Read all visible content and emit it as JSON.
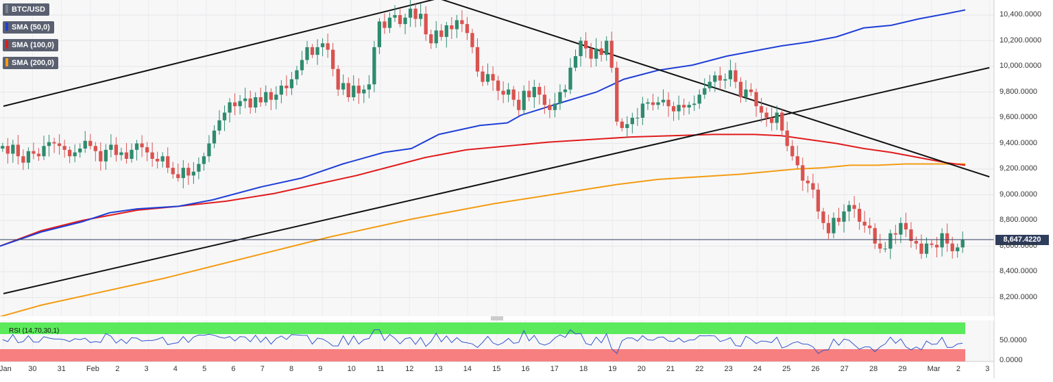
{
  "indicators": [
    {
      "label": "BTC/USD",
      "color": "#7e8592"
    },
    {
      "label": "SMA (50,0)",
      "color": "#1f3fd6"
    },
    {
      "label": "SMA (100,0)",
      "color": "#e11b1b"
    },
    {
      "label": "SMA (200,0)",
      "color": "#f39c12"
    }
  ],
  "rsi_label": "RSI (14,70,30,1)",
  "last_price": "8,647.4220",
  "colors": {
    "up": "#2e8b6e",
    "down": "#d9534f",
    "sma50": "#1f3fd6",
    "sma100": "#e11b1b",
    "sma200": "#f39c12",
    "rsi_line": "#3355cc",
    "rsi_overbought": "#5bea5b",
    "rsi_oversold": "#f77f7f"
  },
  "chart_data": [
    {
      "type": "candlestick",
      "title": "",
      "ylim": [
        8050,
        10520
      ],
      "y_ticks": [
        "10,400.0000",
        "10,200.0000",
        "10,000.0000",
        "9,800.0000",
        "9,600.0000",
        "9,400.0000",
        "9,200.0000",
        "9,000.0000",
        "8,800.0000",
        "8,600.0000",
        "8,400.0000",
        "8,200.0000"
      ],
      "x_tick_labels": [
        "Jan",
        "30",
        "31",
        "Feb",
        "2",
        "3",
        "4",
        "5",
        "6",
        "7",
        "8",
        "9",
        "10",
        "11",
        "12",
        "13",
        "14",
        "15",
        "16",
        "17",
        "18",
        "19",
        "20",
        "21",
        "22",
        "23",
        "24",
        "25",
        "26",
        "27",
        "28",
        "29",
        "Mar",
        "2",
        "3"
      ],
      "x_tick_dates": [
        "2020-01-29",
        "2020-01-30",
        "2020-01-31",
        "2020-02-01",
        "2020-02-02",
        "2020-02-03",
        "2020-02-04",
        "2020-02-05",
        "2020-02-06",
        "2020-02-07",
        "2020-02-08",
        "2020-02-09",
        "2020-02-10",
        "2020-02-11",
        "2020-02-12",
        "2020-02-13",
        "2020-02-14",
        "2020-02-15",
        "2020-02-16",
        "2020-02-17",
        "2020-02-18",
        "2020-02-19",
        "2020-02-20",
        "2020-02-21",
        "2020-02-22",
        "2020-02-23",
        "2020-02-24",
        "2020-02-25",
        "2020-02-26",
        "2020-02-27",
        "2020-02-28",
        "2020-02-29",
        "2020-03-01",
        "2020-03-02",
        "2020-03-03"
      ],
      "candles_close": [
        9380,
        9320,
        9390,
        9300,
        9250,
        9340,
        9320,
        9300,
        9380,
        9410,
        9400,
        9380,
        9350,
        9300,
        9330,
        9360,
        9420,
        9380,
        9340,
        9260,
        9350,
        9390,
        9310,
        9330,
        9280,
        9350,
        9400,
        9370,
        9330,
        9280,
        9260,
        9300,
        9210,
        9160,
        9130,
        9210,
        9150,
        9180,
        9240,
        9300,
        9400,
        9500,
        9580,
        9640,
        9720,
        9690,
        9730,
        9750,
        9680,
        9760,
        9720,
        9800,
        9740,
        9780,
        9850,
        9830,
        9900,
        9970,
        10050,
        10150,
        10090,
        10150,
        10180,
        10130,
        9980,
        9820,
        9870,
        9760,
        9850,
        9790,
        9820,
        9860,
        10150,
        10350,
        10300,
        10380,
        10400,
        10330,
        10380,
        10450,
        10370,
        10410,
        10250,
        10180,
        10280,
        10230,
        10320,
        10290,
        10360,
        10330,
        10260,
        10150,
        9960,
        9880,
        9940,
        9890,
        9810,
        9780,
        9820,
        9740,
        9660,
        9810,
        9760,
        9840,
        9780,
        9700,
        9660,
        9710,
        9800,
        9820,
        9990,
        10080,
        10200,
        10140,
        10060,
        10140,
        10090,
        10200,
        9990,
        9570,
        9520,
        9550,
        9600,
        9600,
        9710,
        9720,
        9700,
        9720,
        9740,
        9690,
        9650,
        9700,
        9680,
        9700,
        9710,
        9780,
        9830,
        9880,
        9930,
        9890,
        9900,
        9970,
        9880,
        9760,
        9820,
        9800,
        9690,
        9640,
        9600,
        9560,
        9640,
        9500,
        9380,
        9300,
        9230,
        9110,
        9090,
        9040,
        8870,
        8780,
        8700,
        8820,
        8790,
        8870,
        8920,
        8890,
        8790,
        8760,
        8740,
        8620,
        8580,
        8580,
        8700,
        8690,
        8780,
        8730,
        8640,
        8620,
        8540,
        8620,
        8610,
        8590,
        8700,
        8620,
        8560,
        8590,
        8647
      ],
      "sma50": [
        [
          0,
          8600
        ],
        [
          60,
          8710
        ],
        [
          120,
          8790
        ],
        [
          160,
          8860
        ],
        [
          200,
          8890
        ],
        [
          260,
          8910
        ],
        [
          310,
          8960
        ],
        [
          380,
          9060
        ],
        [
          440,
          9130
        ],
        [
          500,
          9240
        ],
        [
          560,
          9330
        ],
        [
          600,
          9360
        ],
        [
          640,
          9470
        ],
        [
          700,
          9540
        ],
        [
          740,
          9560
        ],
        [
          760,
          9620
        ],
        [
          820,
          9720
        ],
        [
          870,
          9800
        ],
        [
          910,
          9900
        ],
        [
          960,
          9970
        ],
        [
          1010,
          10010
        ],
        [
          1060,
          10080
        ],
        [
          1100,
          10120
        ],
        [
          1140,
          10160
        ],
        [
          1180,
          10190
        ],
        [
          1220,
          10230
        ],
        [
          1260,
          10300
        ],
        [
          1300,
          10320
        ],
        [
          1340,
          10370
        ],
        [
          1380,
          10410
        ],
        [
          1408,
          10440
        ]
      ],
      "sma100": [
        [
          0,
          8600
        ],
        [
          60,
          8720
        ],
        [
          120,
          8800
        ],
        [
          200,
          8880
        ],
        [
          260,
          8910
        ],
        [
          330,
          8950
        ],
        [
          400,
          9010
        ],
        [
          460,
          9080
        ],
        [
          520,
          9150
        ],
        [
          570,
          9220
        ],
        [
          620,
          9290
        ],
        [
          680,
          9350
        ],
        [
          740,
          9380
        ],
        [
          800,
          9410
        ],
        [
          860,
          9430
        ],
        [
          920,
          9450
        ],
        [
          980,
          9460
        ],
        [
          1040,
          9470
        ],
        [
          1100,
          9470
        ],
        [
          1140,
          9460
        ],
        [
          1180,
          9430
        ],
        [
          1220,
          9400
        ],
        [
          1260,
          9360
        ],
        [
          1300,
          9330
        ],
        [
          1340,
          9290
        ],
        [
          1380,
          9250
        ],
        [
          1408,
          9230
        ]
      ],
      "sma200": [
        [
          0,
          8050
        ],
        [
          60,
          8140
        ],
        [
          120,
          8210
        ],
        [
          180,
          8280
        ],
        [
          240,
          8350
        ],
        [
          300,
          8430
        ],
        [
          360,
          8510
        ],
        [
          420,
          8590
        ],
        [
          480,
          8670
        ],
        [
          540,
          8740
        ],
        [
          600,
          8810
        ],
        [
          660,
          8870
        ],
        [
          720,
          8930
        ],
        [
          780,
          8980
        ],
        [
          840,
          9030
        ],
        [
          900,
          9080
        ],
        [
          960,
          9120
        ],
        [
          1020,
          9140
        ],
        [
          1080,
          9160
        ],
        [
          1120,
          9180
        ],
        [
          1160,
          9200
        ],
        [
          1200,
          9210
        ],
        [
          1240,
          9230
        ],
        [
          1280,
          9230
        ],
        [
          1320,
          9240
        ],
        [
          1360,
          9240
        ],
        [
          1408,
          9240
        ]
      ],
      "trendlines": [
        {
          "from": [
            "2020-01-29",
            9690
          ],
          "to": [
            "2020-02-13",
            10530
          ]
        },
        {
          "from": [
            "2020-02-13",
            10530
          ],
          "to": [
            "2020-03-03",
            9140
          ]
        },
        {
          "from": [
            "2020-01-29",
            8230
          ],
          "to": [
            "2020-03-03",
            9990
          ]
        }
      ],
      "last_price": 8647.422
    },
    {
      "type": "line",
      "title": "RSI (14,70,30,1)",
      "ylim": [
        0,
        100
      ],
      "y_ticks": [
        "50.0000",
        "0.0000"
      ],
      "overbought": 70,
      "oversold": 30
    }
  ]
}
